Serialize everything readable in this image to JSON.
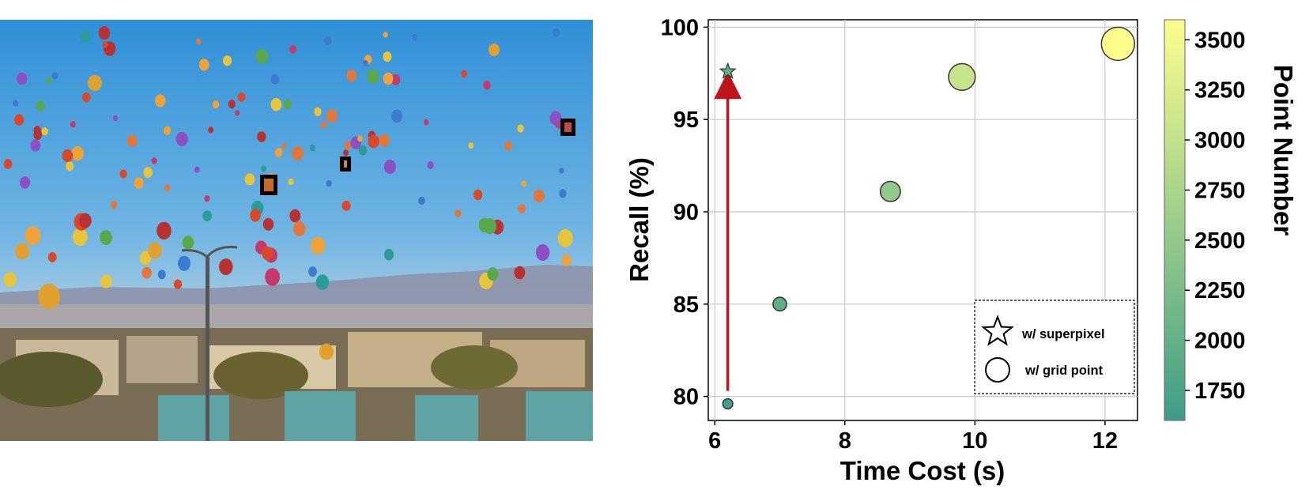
{
  "photo": {
    "description_icon": "hot-air-balloons-photo",
    "sky_top": "#2f93d8",
    "sky_bottom": "#b9cfdc"
  },
  "chart_data": {
    "type": "scatter",
    "xlabel": "Time Cost (s)",
    "ylabel": "Recall (%)",
    "xlim": [
      5.9,
      12.5
    ],
    "ylim": [
      78.7,
      100.4
    ],
    "xticks": [
      6,
      8,
      10,
      12
    ],
    "yticks": [
      80,
      85,
      90,
      95,
      100
    ],
    "grid": true,
    "series": [
      {
        "name": "w/ grid point",
        "marker": "circle",
        "points": [
          {
            "x": 6.2,
            "y": 79.6,
            "point_number": 1650
          },
          {
            "x": 7.0,
            "y": 85.0,
            "point_number": 1950
          },
          {
            "x": 8.7,
            "y": 91.1,
            "point_number": 2500
          },
          {
            "x": 9.8,
            "y": 97.3,
            "point_number": 3050
          },
          {
            "x": 12.2,
            "y": 99.1,
            "point_number": 3600
          }
        ]
      },
      {
        "name": "w/ superpixel",
        "marker": "star",
        "points": [
          {
            "x": 6.2,
            "y": 97.6,
            "point_number": 1950
          }
        ]
      }
    ],
    "annotations": [
      {
        "type": "arrow",
        "from": {
          "x": 6.2,
          "y": 80.3
        },
        "to": {
          "x": 6.2,
          "y": 97.2
        },
        "color": "#c0141c"
      }
    ],
    "legend": {
      "placement": "bottom-right",
      "entries": [
        "w/ superpixel",
        "w/ grid point"
      ]
    },
    "colorbar": {
      "label": "Point Number",
      "range": [
        1600,
        3600
      ],
      "ticks": [
        1750,
        2000,
        2250,
        2500,
        2750,
        3000,
        3250,
        3500
      ],
      "colormap": "summer-like",
      "low_color": "#3e9c88",
      "high_color": "#fdfd8c"
    }
  }
}
